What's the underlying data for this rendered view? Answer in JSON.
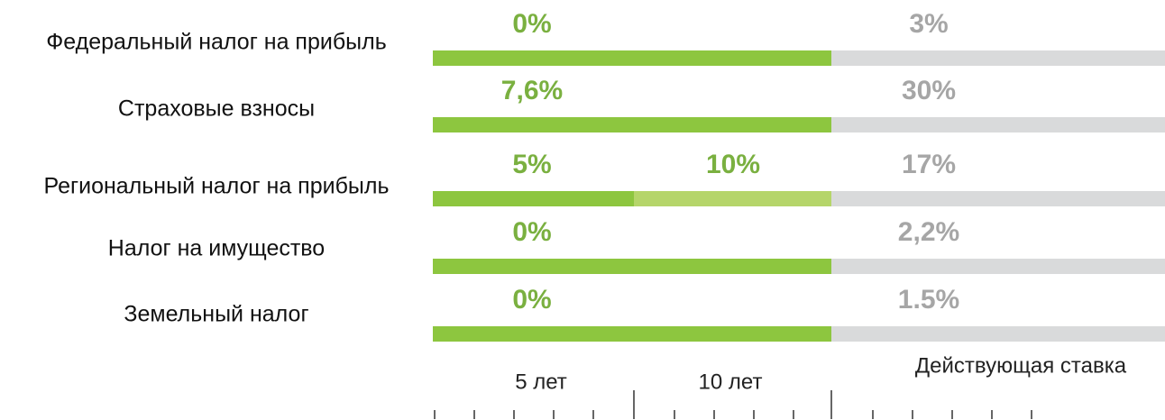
{
  "rows": [
    {
      "label": "Федеральный налог на прибыль",
      "rates": [
        "0%",
        null,
        "3%"
      ]
    },
    {
      "label": "Страховые взносы",
      "rates": [
        "7,6%",
        null,
        "30%"
      ]
    },
    {
      "label": "Региональный налог на прибыль",
      "rates": [
        "5%",
        "10%",
        "17%"
      ]
    },
    {
      "label": "Налог на имущество",
      "rates": [
        "0%",
        null,
        "2,2%"
      ]
    },
    {
      "label": "Земельный налог",
      "rates": [
        "0%",
        null,
        "1.5%"
      ]
    }
  ],
  "periods": [
    "5 лет",
    "10 лет",
    "Действующая ставка"
  ],
  "bar_colors": [
    "#8dc63f",
    "#b5d56a",
    "#d9dadb"
  ],
  "text_colors": [
    "#7ab040",
    "#7ab040",
    "#a6a6a6"
  ]
}
